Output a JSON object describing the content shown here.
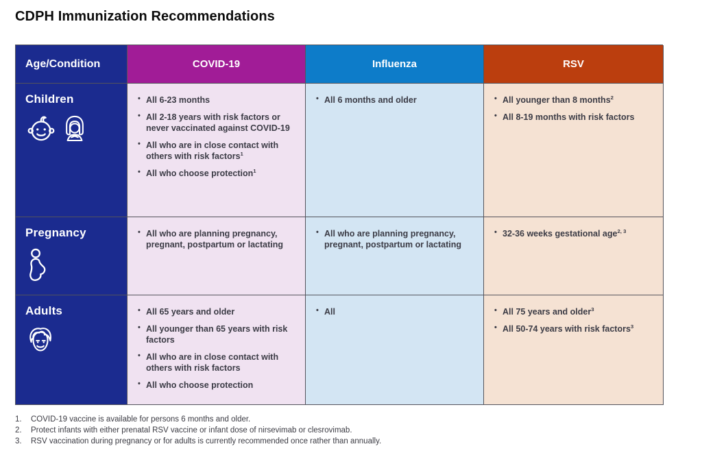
{
  "page_title": "CDPH Immunization Recommendations",
  "colors": {
    "navy": "#1B2B8F",
    "covid_header": "#A11C97",
    "flu_header": "#0D7CC9",
    "rsv_header": "#BB3E0E",
    "covid_cell_bg": "#F0E2F1",
    "flu_cell_bg": "#D3E5F3",
    "rsv_cell_bg": "#F5E2D3",
    "grid_border": "#53535B",
    "cell_text": "#3B3B45"
  },
  "table": {
    "headers": {
      "age_condition": "Age/Condition",
      "covid19": "COVID-19",
      "influenza": "Influenza",
      "rsv": "RSV"
    },
    "rows": [
      {
        "label": "Children",
        "icons": [
          "baby-icon",
          "girl-icon"
        ],
        "covid19": [
          {
            "text": "All 6-23 months"
          },
          {
            "text": "All 2-18 years with risk factors or never vaccinated against COVID-19"
          },
          {
            "text": "All who are in close contact with others with risk factors",
            "sup": "1"
          },
          {
            "text": "All who choose protection",
            "sup": "1"
          }
        ],
        "influenza": [
          {
            "text": "All 6 months and older"
          }
        ],
        "rsv": [
          {
            "text": "All younger than 8 months",
            "sup": "2"
          },
          {
            "text": "All 8-19 months with risk factors"
          }
        ]
      },
      {
        "label": "Pregnancy",
        "icons": [
          "pregnant-person-icon"
        ],
        "covid19": [
          {
            "text": "All who are planning pregnancy, pregnant, postpartum or lactating"
          }
        ],
        "influenza": [
          {
            "text": "All who are planning pregnancy, pregnant, postpartum or lactating"
          }
        ],
        "rsv": [
          {
            "text": "32-36 weeks gestational age",
            "sup": "2, 3"
          }
        ]
      },
      {
        "label": "Adults",
        "icons": [
          "adult-man-icon"
        ],
        "covid19": [
          {
            "text": "All 65 years and older"
          },
          {
            "text": "All younger than 65 years with risk factors"
          },
          {
            "text": "All who are in close contact with others with risk factors"
          },
          {
            "text": "All who choose protection"
          }
        ],
        "influenza": [
          {
            "text": "All"
          }
        ],
        "rsv": [
          {
            "text": "All 75 years and older",
            "sup": "3"
          },
          {
            "text": "All 50-74 years with risk factors",
            "sup": "3"
          }
        ]
      }
    ]
  },
  "footnotes": [
    {
      "num": "1.",
      "text": "COVID-19 vaccine is available for persons 6 months and older."
    },
    {
      "num": "2.",
      "text": "Protect infants with either prenatal RSV vaccine or infant dose of nirsevimab or clesrovimab."
    },
    {
      "num": "3.",
      "text": "RSV vaccination during pregnancy or for adults is currently recommended once rather than annually."
    }
  ]
}
